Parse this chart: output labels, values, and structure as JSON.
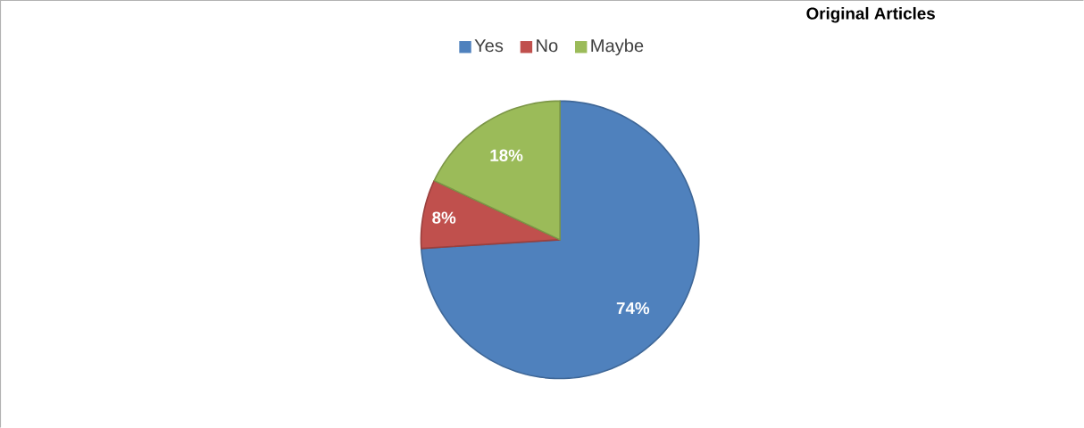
{
  "chart_data": {
    "type": "pie",
    "categories": [
      "Yes",
      "No",
      "Maybe"
    ],
    "values": [
      74,
      8,
      18
    ],
    "colors": [
      "#4f81bd",
      "#c0504d",
      "#9bbb59"
    ],
    "value_labels": [
      "74%",
      "8%",
      "18%"
    ],
    "legend": "top",
    "annotations": [
      "Original Articles"
    ]
  }
}
